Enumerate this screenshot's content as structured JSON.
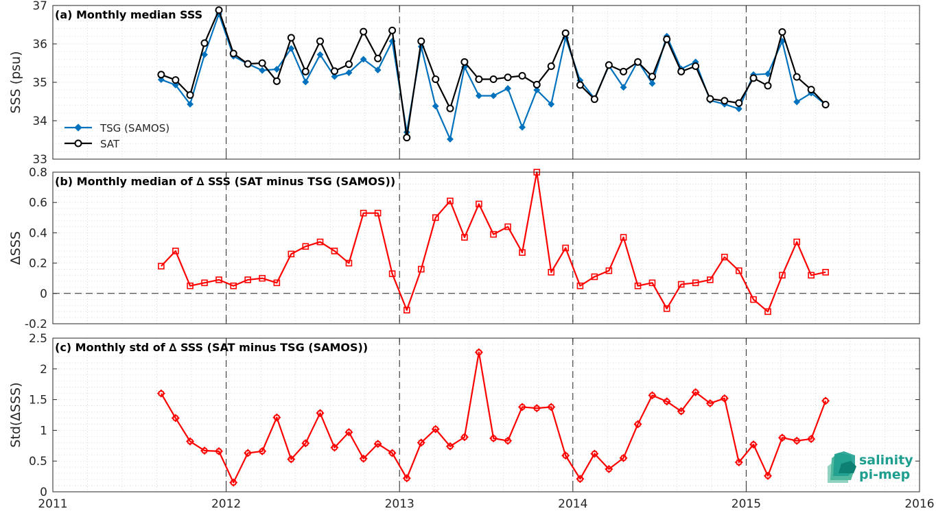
{
  "chart_data": [
    {
      "type": "line",
      "title": "(a) Monthly median SSS",
      "ylabel": "SSS (psu)",
      "xlabel": "",
      "xlim": [
        2011,
        2016
      ],
      "ylim": [
        33,
        37
      ],
      "xticks": [
        "2011",
        "2012",
        "2013",
        "2014",
        "2015",
        "2016"
      ],
      "yticks": [
        "33",
        "34",
        "35",
        "36",
        "37"
      ],
      "grid": true,
      "legend_position": "bottom-left",
      "x": [
        2011.625,
        2011.708,
        2011.792,
        2011.875,
        2011.958,
        2012.042,
        2012.125,
        2012.208,
        2012.292,
        2012.375,
        2012.458,
        2012.542,
        2012.625,
        2012.708,
        2012.792,
        2012.875,
        2012.958,
        2013.042,
        2013.125,
        2013.208,
        2013.292,
        2013.375,
        2013.458,
        2013.542,
        2013.625,
        2013.708,
        2013.792,
        2013.875,
        2013.958,
        2014.042,
        2014.125,
        2014.208,
        2014.292,
        2014.375,
        2014.458,
        2014.542,
        2014.625,
        2014.708,
        2014.792,
        2014.875,
        2014.958,
        2015.042,
        2015.125,
        2015.208,
        2015.292,
        2015.375,
        2015.458
      ],
      "series": [
        {
          "name": "TSG (SAMOS)",
          "color": "#0072bd",
          "marker": "diamond",
          "values": [
            35.07,
            34.93,
            34.43,
            35.72,
            36.78,
            35.68,
            35.48,
            35.31,
            35.34,
            35.88,
            35.01,
            35.72,
            35.15,
            35.25,
            35.6,
            35.32,
            36.07,
            33.7,
            35.93,
            34.38,
            33.52,
            35.4,
            34.65,
            34.65,
            34.84,
            33.83,
            34.8,
            34.43,
            36.16,
            35.05,
            34.58,
            35.43,
            34.87,
            35.55,
            34.97,
            36.2,
            35.35,
            35.53,
            34.53,
            34.43,
            34.31,
            35.2,
            35.22,
            36.07,
            34.49,
            34.72,
            34.42
          ]
        },
        {
          "name": "SAT",
          "color": "#000000",
          "marker": "circle",
          "values": [
            35.2,
            35.06,
            34.67,
            36.02,
            36.88,
            35.75,
            35.48,
            35.5,
            35.03,
            36.16,
            35.28,
            36.07,
            35.29,
            35.47,
            36.32,
            35.62,
            36.35,
            33.56,
            36.07,
            35.08,
            34.32,
            35.53,
            35.08,
            35.08,
            35.13,
            35.17,
            34.94,
            35.42,
            36.28,
            34.93,
            34.56,
            35.45,
            35.28,
            35.53,
            35.15,
            36.12,
            35.28,
            35.42,
            34.57,
            34.52,
            34.46,
            35.11,
            34.91,
            36.31,
            35.14,
            34.81,
            34.42
          ]
        }
      ]
    },
    {
      "type": "line",
      "title": "(b) Monthly median of ∆ SSS (SAT minus TSG (SAMOS))",
      "ylabel": "∆SSS",
      "xlabel": "",
      "xlim": [
        2011,
        2016
      ],
      "ylim": [
        -0.2,
        0.8
      ],
      "xticks": [
        "2011",
        "2012",
        "2013",
        "2014",
        "2015",
        "2016"
      ],
      "yticks": [
        "-0.2",
        "0",
        "0.2",
        "0.4",
        "0.6",
        "0.8"
      ],
      "grid": true,
      "zero_line": true,
      "x": [
        2011.625,
        2011.708,
        2011.792,
        2011.875,
        2011.958,
        2012.042,
        2012.125,
        2012.208,
        2012.292,
        2012.375,
        2012.458,
        2012.542,
        2012.625,
        2012.708,
        2012.792,
        2012.875,
        2012.958,
        2013.042,
        2013.125,
        2013.208,
        2013.292,
        2013.375,
        2013.458,
        2013.542,
        2013.625,
        2013.708,
        2013.792,
        2013.875,
        2013.958,
        2014.042,
        2014.125,
        2014.208,
        2014.292,
        2014.375,
        2014.458,
        2014.542,
        2014.625,
        2014.708,
        2014.792,
        2014.875,
        2014.958,
        2015.042,
        2015.125,
        2015.208,
        2015.292,
        2015.375,
        2015.458
      ],
      "series": [
        {
          "color": "#ff0000",
          "marker": "square",
          "values": [
            0.18,
            0.28,
            0.05,
            0.07,
            0.09,
            0.05,
            0.09,
            0.1,
            0.07,
            0.26,
            0.31,
            0.34,
            0.28,
            0.2,
            0.53,
            0.53,
            0.13,
            -0.11,
            0.16,
            0.5,
            0.61,
            0.37,
            0.59,
            0.39,
            0.44,
            0.27,
            0.8,
            0.14,
            0.3,
            0.05,
            0.11,
            0.15,
            0.37,
            0.05,
            0.07,
            -0.1,
            0.06,
            0.07,
            0.09,
            0.24,
            0.15,
            -0.04,
            -0.12,
            0.12,
            0.34,
            0.12,
            0.14
          ]
        }
      ]
    },
    {
      "type": "line",
      "title": "(c) Monthly std of ∆ SSS (SAT minus TSG (SAMOS))",
      "ylabel": "Std(∆SSS)",
      "xlabel": "",
      "xlim": [
        2011,
        2016
      ],
      "ylim": [
        0,
        2.5
      ],
      "xticks": [
        "2011",
        "2012",
        "2013",
        "2014",
        "2015",
        "2016"
      ],
      "yticks": [
        "0",
        "0.5",
        "1",
        "1.5",
        "2",
        "2.5"
      ],
      "grid": true,
      "x": [
        2011.625,
        2011.708,
        2011.792,
        2011.875,
        2011.958,
        2012.042,
        2012.125,
        2012.208,
        2012.292,
        2012.375,
        2012.458,
        2012.542,
        2012.625,
        2012.708,
        2012.792,
        2012.875,
        2012.958,
        2013.042,
        2013.125,
        2013.208,
        2013.292,
        2013.375,
        2013.458,
        2013.542,
        2013.625,
        2013.708,
        2013.792,
        2013.875,
        2013.958,
        2014.042,
        2014.125,
        2014.208,
        2014.292,
        2014.375,
        2014.458,
        2014.542,
        2014.625,
        2014.708,
        2014.792,
        2014.875,
        2014.958,
        2015.042,
        2015.125,
        2015.208,
        2015.292,
        2015.375,
        2015.458
      ],
      "series": [
        {
          "color": "#ff0000",
          "marker": "diamond-square",
          "values": [
            1.6,
            1.2,
            0.82,
            0.67,
            0.66,
            0.15,
            0.63,
            0.66,
            1.21,
            0.53,
            0.79,
            1.28,
            0.72,
            0.97,
            0.54,
            0.78,
            0.63,
            0.22,
            0.8,
            1.02,
            0.74,
            0.89,
            2.27,
            0.87,
            0.83,
            1.38,
            1.36,
            1.38,
            0.59,
            0.21,
            0.62,
            0.37,
            0.55,
            1.1,
            1.57,
            1.47,
            1.31,
            1.62,
            1.44,
            1.52,
            0.48,
            0.77,
            0.26,
            0.88,
            0.83,
            0.86,
            1.48
          ]
        }
      ]
    }
  ],
  "logo": {
    "line1": "salinity",
    "line2": "pi-mep",
    "color": "#1e9e8f"
  }
}
